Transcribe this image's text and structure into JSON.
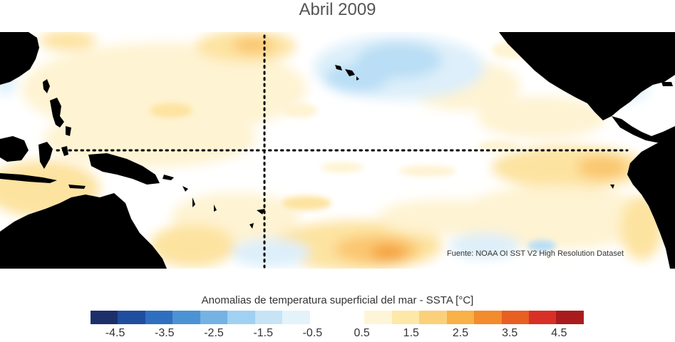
{
  "title": "Abril 2009",
  "source_note": "Fuente: NOAA OI SST V2 High Resolution Dataset",
  "colorbar": {
    "label": "Anomalias de temperatura superficial del mar - SSTA  [°C]",
    "colors": [
      "#1c2f6b",
      "#1f4e9e",
      "#2f6fbf",
      "#4c93d4",
      "#74b2e4",
      "#a0d0f2",
      "#c6e4f6",
      "#e4f3fa",
      "#ffffff",
      "#ffffff",
      "#fef5d8",
      "#fde8a8",
      "#fbd07a",
      "#f8b047",
      "#f28c2c",
      "#e85f22",
      "#d83026",
      "#a81c1e"
    ],
    "ticks": [
      "-4.5",
      "-3.5",
      "-2.5",
      "-1.5",
      "-0.5",
      "0.5",
      "1.5",
      "2.5",
      "3.5",
      "4.5"
    ],
    "tick_values": [
      -4.5,
      -3.5,
      -2.5,
      -1.5,
      -0.5,
      0.5,
      1.5,
      2.5,
      3.5,
      4.5
    ],
    "range": [
      -4.5,
      4.5
    ]
  },
  "map_colors": {
    "land": "#000000",
    "warm_light": "#fef3d2",
    "warm": "#fde3a0",
    "warm_mid": "#fbc670",
    "warm_strong": "#f5a443",
    "cool_light": "#ddeffa",
    "cool": "#b9def5",
    "cool_mid": "#8fc8ee"
  }
}
